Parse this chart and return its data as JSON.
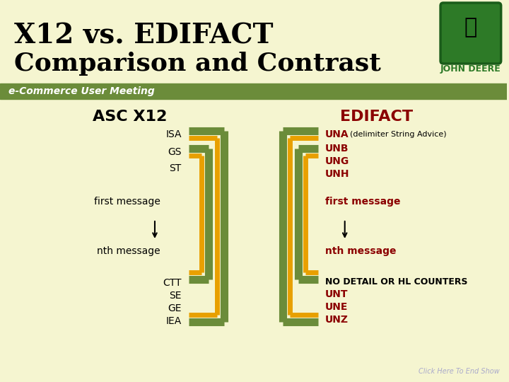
{
  "title_line1": "X12 vs. EDIFACT",
  "title_line2": "Comparison and Contrast",
  "subtitle": "e-Commerce User Meeting",
  "bg_color_top": "#f5f5d0",
  "bg_color_bottom": "#f0f0c8",
  "green_bar_color": "#6b8c3a",
  "orange_color": "#e8a000",
  "header_green": "#5a7a2a",
  "left_heading": "ASC X12",
  "right_heading": "EDIFACT",
  "left_labels_top": [
    "ISA",
    "GS",
    "ST"
  ],
  "left_labels_bottom": [
    "CTT",
    "SE",
    "GE",
    "IEA"
  ],
  "right_labels_top": [
    "UNA",
    "UNB",
    "UNG",
    "UNH"
  ],
  "right_labels_bottom": [
    "UNT",
    "UNE",
    "UNZ"
  ],
  "una_note": "(delimiter String Advice)",
  "no_detail_note": "NO DETAIL OR HL COUNTERS",
  "first_msg": "first message",
  "nth_msg": "nth message",
  "click_text": "Click Here To End Show",
  "dark_red": "#8b0000",
  "black": "#000000",
  "olive": "#6b8c3a",
  "subtitle_color": "#ffffff"
}
